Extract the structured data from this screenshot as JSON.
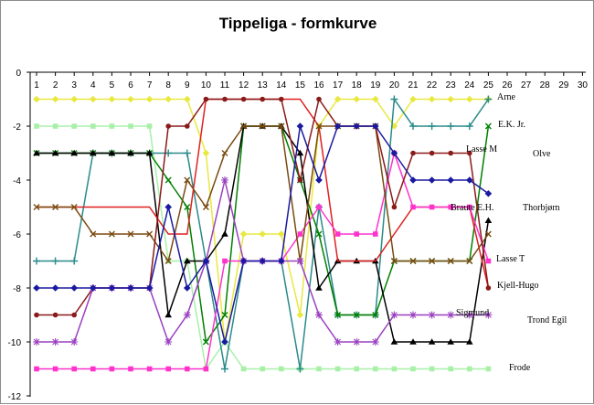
{
  "chart_data": {
    "type": "line",
    "title": "Tippeliga - formkurve",
    "x": [
      1,
      2,
      3,
      4,
      5,
      6,
      7,
      8,
      9,
      10,
      11,
      12,
      13,
      14,
      15,
      16,
      17,
      18,
      19,
      20,
      21,
      22,
      23,
      24,
      25
    ],
    "x_ticks": [
      1,
      2,
      3,
      4,
      5,
      6,
      7,
      8,
      9,
      10,
      11,
      12,
      13,
      14,
      15,
      16,
      17,
      18,
      19,
      20,
      21,
      22,
      23,
      24,
      25,
      26,
      27,
      28,
      29,
      30
    ],
    "y_ticks": [
      0,
      -2,
      -4,
      -6,
      -8,
      -10,
      -12
    ],
    "xlim": [
      1,
      30
    ],
    "ylim": [
      -12,
      0
    ],
    "grid": false,
    "x_axis_position": "top",
    "series": [
      {
        "name": "Arne",
        "color": "#e8e840",
        "marker": "diamond",
        "values": [
          -1,
          -1,
          -1,
          -1,
          -1,
          -1,
          -1,
          -1,
          -1,
          -3,
          -10,
          -6,
          -6,
          -6,
          -9,
          -2,
          -1,
          -1,
          -1,
          -2,
          -1,
          -1,
          -1,
          -1,
          -1
        ]
      },
      {
        "name": "E.K. Jr.",
        "color": "#a8f0a8",
        "marker": "square",
        "values": [
          -2,
          -2,
          -2,
          -2,
          -2,
          -2,
          -2,
          -7,
          -7,
          -11,
          -10,
          -11,
          -11,
          -11,
          -11,
          -11,
          -11,
          -11,
          -11,
          -11,
          -11,
          -11,
          -11,
          -11,
          -11
        ]
      },
      {
        "name": "Lasse M",
        "color": "#2a8a8a",
        "marker": "plus",
        "values": [
          -7,
          -7,
          -7,
          -3,
          -3,
          -3,
          -3,
          -3,
          -3,
          -7,
          -11,
          -7,
          -7,
          -7,
          -11,
          -5,
          -9,
          -9,
          -9,
          -1,
          -2,
          -2,
          -2,
          -2,
          -1
        ]
      },
      {
        "name": "Olve",
        "color": "#008000",
        "marker": "cross",
        "values": [
          -3,
          -3,
          -3,
          -3,
          -3,
          -3,
          -3,
          -4,
          -5,
          -10,
          -9,
          -2,
          -2,
          -2,
          -4,
          -6,
          -9,
          -9,
          -9,
          -7,
          -7,
          -7,
          -7,
          -7,
          -2
        ]
      },
      {
        "name": "Thorbjørn",
        "color": "#000000",
        "marker": "triangle",
        "values": [
          -3,
          -3,
          -3,
          -3,
          -3,
          -3,
          -3,
          -9,
          -7,
          -7,
          -6,
          -2,
          -2,
          -2,
          -3,
          -8,
          -7,
          -7,
          -7,
          -10,
          -10,
          -10,
          -10,
          -10,
          -5.5
        ]
      },
      {
        "name": "Braute E.H.",
        "color": "#e02020",
        "marker": "none",
        "values": [
          -5,
          -5,
          -5,
          -5,
          -5,
          -5,
          -5,
          -6,
          -6,
          -1,
          -1,
          -1,
          -1,
          -1,
          -1,
          -2,
          -7,
          -7,
          -7,
          -6,
          -5,
          -5,
          -5,
          -5,
          -8
        ]
      },
      {
        "name": "Lasse T",
        "color": "#ff33cc",
        "marker": "square",
        "values": [
          -11,
          -11,
          -11,
          -11,
          -11,
          -11,
          -11,
          -11,
          -11,
          -11,
          -7,
          -7,
          -7,
          -7,
          -6,
          -5,
          -6,
          -6,
          -6,
          -3,
          -5,
          -5,
          -5,
          -5,
          -7
        ]
      },
      {
        "name": "Kjell-Hugo",
        "color": "#7a4a10",
        "marker": "cross",
        "values": [
          -5,
          -5,
          -5,
          -6,
          -6,
          -6,
          -6,
          -7,
          -4,
          -5,
          -3,
          -2,
          -2,
          -2,
          -7,
          -2,
          -2,
          -2,
          -2,
          -7,
          -7,
          -7,
          -7,
          -7,
          -6
        ]
      },
      {
        "name": "Sigmund",
        "color": "#8b1a1a",
        "marker": "circle",
        "values": [
          -9,
          -9,
          -9,
          -8,
          -8,
          -8,
          -8,
          -2,
          -2,
          -1,
          -1,
          -1,
          -1,
          -1,
          -4,
          -1,
          -2,
          -2,
          -2,
          -5,
          -3,
          -3,
          -3,
          -3,
          -8
        ]
      },
      {
        "name": "Trond Egil",
        "color": "#9a40c0",
        "marker": "star",
        "values": [
          -10,
          -10,
          -10,
          -8,
          -8,
          -8,
          -8,
          -10,
          -9,
          -7,
          -4,
          -7,
          -7,
          -7,
          -7,
          -9,
          -10,
          -10,
          -10,
          -9,
          -9,
          -9,
          -9,
          -9,
          -9
        ]
      },
      {
        "name": "Frode",
        "color": "#1a1aa0",
        "marker": "diamond",
        "values": [
          -8,
          -8,
          -8,
          -8,
          -8,
          -8,
          -8,
          -5,
          -8,
          -7,
          -10,
          -7,
          -7,
          -7,
          -2,
          -4,
          -2,
          -2,
          -2,
          -3,
          -4,
          -4,
          -4,
          -4,
          -4.5
        ]
      }
    ]
  }
}
